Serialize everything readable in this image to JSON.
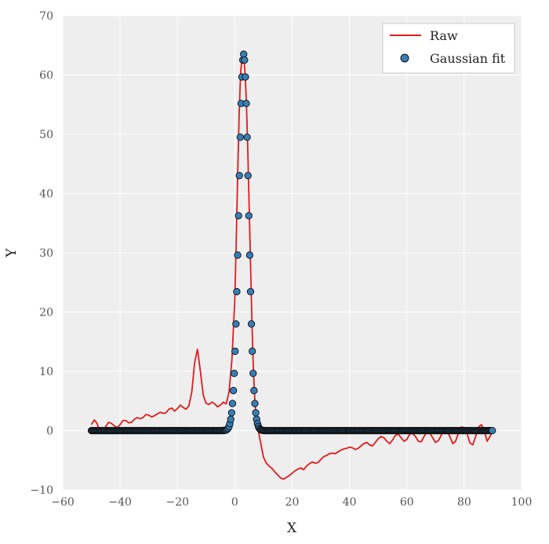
{
  "chart_data": {
    "type": "line",
    "title": "",
    "xlabel": "X",
    "ylabel": "Y",
    "xlim": [
      -60,
      100
    ],
    "ylim": [
      -10,
      70
    ],
    "xticks": [
      -60,
      -40,
      -20,
      0,
      20,
      40,
      60,
      80,
      100
    ],
    "yticks": [
      -10,
      0,
      10,
      20,
      30,
      40,
      50,
      60,
      70
    ],
    "xtick_labels": [
      "−60",
      "−40",
      "−20",
      "0",
      "20",
      "40",
      "60",
      "80",
      "100"
    ],
    "ytick_labels": [
      "−10",
      "0",
      "10",
      "20",
      "30",
      "40",
      "50",
      "60",
      "70"
    ],
    "grid": true,
    "legend_position": "top-right",
    "colors": {
      "background": "#eeeeee",
      "grid": "#ffffff",
      "raw": "#e41a1c",
      "fit_fill": "#377eb8",
      "fit_edge": "#111111"
    },
    "series": [
      {
        "name": "Raw",
        "kind": "line",
        "x": [
          -50,
          -49,
          -48,
          -47,
          -46,
          -45,
          -44,
          -43,
          -42,
          -41,
          -40,
          -39,
          -38,
          -37,
          -36,
          -35,
          -34,
          -33,
          -32,
          -31,
          -30,
          -29,
          -28,
          -27,
          -26,
          -25,
          -24,
          -23,
          -22,
          -21,
          -20,
          -19,
          -18,
          -17,
          -16,
          -15,
          -14,
          -13,
          -12,
          -11,
          -10,
          -9,
          -8,
          -7,
          -6,
          -5,
          -4,
          -3,
          -2,
          -1,
          0,
          0.5,
          1,
          1.5,
          2,
          2.5,
          3,
          3.5,
          4,
          4.5,
          5,
          5.5,
          6,
          6.5,
          7,
          7.5,
          8,
          9,
          10,
          11,
          12,
          13,
          14,
          15,
          16,
          17,
          18,
          19,
          20,
          21,
          22,
          23,
          24,
          25,
          26,
          27,
          28,
          29,
          30,
          31,
          32,
          33,
          34,
          35,
          36,
          37,
          38,
          39,
          40,
          41,
          42,
          43,
          44,
          45,
          46,
          47,
          48,
          49,
          50,
          51,
          52,
          53,
          54,
          55,
          56,
          57,
          58,
          59,
          60,
          61,
          62,
          63,
          64,
          65,
          66,
          67,
          68,
          69,
          70,
          71,
          72,
          73,
          74,
          75,
          76,
          77,
          78,
          79,
          80,
          81,
          82,
          83,
          84,
          85,
          86,
          87,
          88,
          89,
          90
        ],
        "y": [
          1.0,
          1.8,
          1.2,
          -0.4,
          0.0,
          0.7,
          1.4,
          1.2,
          0.8,
          0.5,
          1.0,
          1.7,
          1.7,
          1.3,
          1.4,
          1.9,
          2.2,
          2.0,
          2.2,
          2.7,
          2.6,
          2.3,
          2.5,
          2.8,
          3.1,
          2.9,
          3.0,
          3.6,
          3.8,
          3.3,
          3.7,
          4.3,
          3.9,
          3.6,
          4.2,
          6.5,
          11.5,
          13.7,
          10.0,
          6.0,
          4.6,
          4.4,
          4.8,
          4.5,
          4.0,
          4.3,
          4.8,
          4.5,
          6.5,
          12.0,
          22.0,
          32.0,
          43.0,
          53.0,
          60.0,
          63.0,
          63.3,
          61.0,
          56.0,
          48.0,
          38.0,
          28.0,
          18.0,
          10.0,
          5.0,
          2.0,
          0.5,
          -2.0,
          -4.5,
          -5.5,
          -6.0,
          -6.4,
          -7.0,
          -7.5,
          -8.0,
          -8.2,
          -7.9,
          -7.6,
          -7.2,
          -6.8,
          -6.5,
          -6.3,
          -6.6,
          -6.0,
          -5.6,
          -5.3,
          -5.5,
          -5.4,
          -4.9,
          -4.4,
          -4.2,
          -3.9,
          -3.8,
          -3.9,
          -3.6,
          -3.3,
          -3.1,
          -3.0,
          -2.8,
          -2.9,
          -3.2,
          -3.0,
          -2.6,
          -2.2,
          -2.0,
          -2.4,
          -2.6,
          -2.0,
          -1.4,
          -1.0,
          -1.2,
          -1.8,
          -2.2,
          -1.6,
          -0.8,
          -0.6,
          -1.2,
          -1.8,
          -1.5,
          -0.6,
          -0.5,
          -1.0,
          -1.8,
          -1.9,
          -1.0,
          -0.2,
          -0.4,
          -1.2,
          -2.0,
          -1.7,
          -0.8,
          0.3,
          0.0,
          -1.0,
          -2.2,
          -1.8,
          -0.4,
          0.6,
          0.5,
          -0.5,
          -2.1,
          -2.4,
          -1.0,
          0.6,
          1.0,
          0.0,
          -1.8,
          -1.0,
          0.0
        ]
      },
      {
        "name": "Gaussian fit",
        "kind": "scatter",
        "model": "gaussian",
        "amplitude": 63.5,
        "center": 3.1,
        "sigma": 1.7,
        "x_start": -50,
        "x_end": 90,
        "x_step": 0.3
      }
    ]
  }
}
